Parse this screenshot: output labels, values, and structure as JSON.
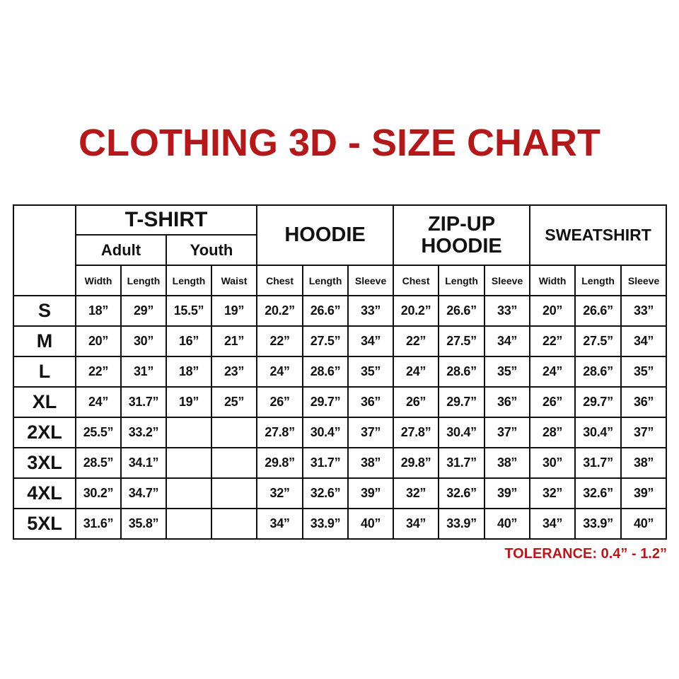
{
  "title": "CLOTHING 3D - SIZE CHART",
  "colors": {
    "accent": "#b3191b",
    "border": "#111111"
  },
  "groups": {
    "tshirt": "T-SHIRT",
    "adult": "Adult",
    "youth": "Youth",
    "hoodie": "HOODIE",
    "zip_up_hoodie_line1": "ZIP-UP",
    "zip_up_hoodie_line2": "HOODIE",
    "sweatshirt": "SWEATSHIRT"
  },
  "columns": [
    "Width",
    "Length",
    "Length",
    "Waist",
    "Chest",
    "Length",
    "Sleeve",
    "Chest",
    "Length",
    "Sleeve",
    "Width",
    "Length",
    "Sleeve"
  ],
  "rows": [
    {
      "size": "S",
      "values": [
        "18”",
        "29”",
        "15.5”",
        "19”",
        "20.2”",
        "26.6”",
        "33”",
        "20.2”",
        "26.6”",
        "33”",
        "20”",
        "26.6”",
        "33”"
      ]
    },
    {
      "size": "M",
      "values": [
        "20”",
        "30”",
        "16”",
        "21”",
        "22”",
        "27.5”",
        "34”",
        "22”",
        "27.5”",
        "34”",
        "22”",
        "27.5”",
        "34”"
      ]
    },
    {
      "size": "L",
      "values": [
        "22”",
        "31”",
        "18”",
        "23”",
        "24”",
        "28.6”",
        "35”",
        "24”",
        "28.6”",
        "35”",
        "24”",
        "28.6”",
        "35”"
      ]
    },
    {
      "size": "XL",
      "values": [
        "24”",
        "31.7”",
        "19”",
        "25”",
        "26”",
        "29.7”",
        "36”",
        "26”",
        "29.7”",
        "36”",
        "26”",
        "29.7”",
        "36”"
      ]
    },
    {
      "size": "2XL",
      "values": [
        "25.5”",
        "33.2”",
        "",
        "",
        "27.8”",
        "30.4”",
        "37”",
        "27.8”",
        "30.4”",
        "37”",
        "28”",
        "30.4”",
        "37”"
      ]
    },
    {
      "size": "3XL",
      "values": [
        "28.5”",
        "34.1”",
        "",
        "",
        "29.8”",
        "31.7”",
        "38”",
        "29.8”",
        "31.7”",
        "38”",
        "30”",
        "31.7”",
        "38”"
      ]
    },
    {
      "size": "4XL",
      "values": [
        "30.2”",
        "34.7”",
        "",
        "",
        "32”",
        "32.6”",
        "39”",
        "32”",
        "32.6”",
        "39”",
        "32”",
        "32.6”",
        "39”"
      ]
    },
    {
      "size": "5XL",
      "values": [
        "31.6”",
        "35.8”",
        "",
        "",
        "34”",
        "33.9”",
        "40”",
        "34”",
        "33.9”",
        "40”",
        "34”",
        "33.9”",
        "40”"
      ]
    }
  ],
  "tolerance": "TOLERANCE: 0.4” - 1.2”"
}
